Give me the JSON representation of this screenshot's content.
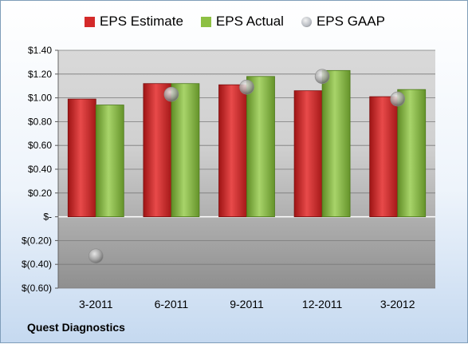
{
  "footer": {
    "company": "Quest Diagnostics"
  },
  "colors": {
    "estimate": "#d42a2a",
    "actual": "#8dc043",
    "gaap": "#b8bcc2"
  },
  "chart_data": {
    "type": "bar",
    "categories": [
      "3-2011",
      "6-2011",
      "9-2011",
      "12-2011",
      "3-2012"
    ],
    "series": [
      {
        "name": "EPS Estimate",
        "type": "bar",
        "values": [
          0.99,
          1.12,
          1.11,
          1.06,
          1.01
        ]
      },
      {
        "name": "EPS Actual",
        "type": "bar",
        "values": [
          0.94,
          1.12,
          1.18,
          1.23,
          1.07
        ]
      },
      {
        "name": "EPS GAAP",
        "type": "scatter",
        "values": [
          -0.33,
          1.03,
          1.09,
          1.18,
          0.99
        ]
      }
    ],
    "ylim": [
      -0.6,
      1.4
    ],
    "yticks": [
      -0.6,
      -0.4,
      -0.2,
      0,
      0.2,
      0.4,
      0.6,
      0.8,
      1.0,
      1.2,
      1.4
    ],
    "ytick_labels": [
      "$(0.60)",
      "$(0.40)",
      "$(0.20)",
      "$-",
      "$0.20",
      "$0.40",
      "$0.60",
      "$0.80",
      "$1.00",
      "$1.20",
      "$1.40"
    ],
    "legend_position": "top",
    "grid": true
  }
}
